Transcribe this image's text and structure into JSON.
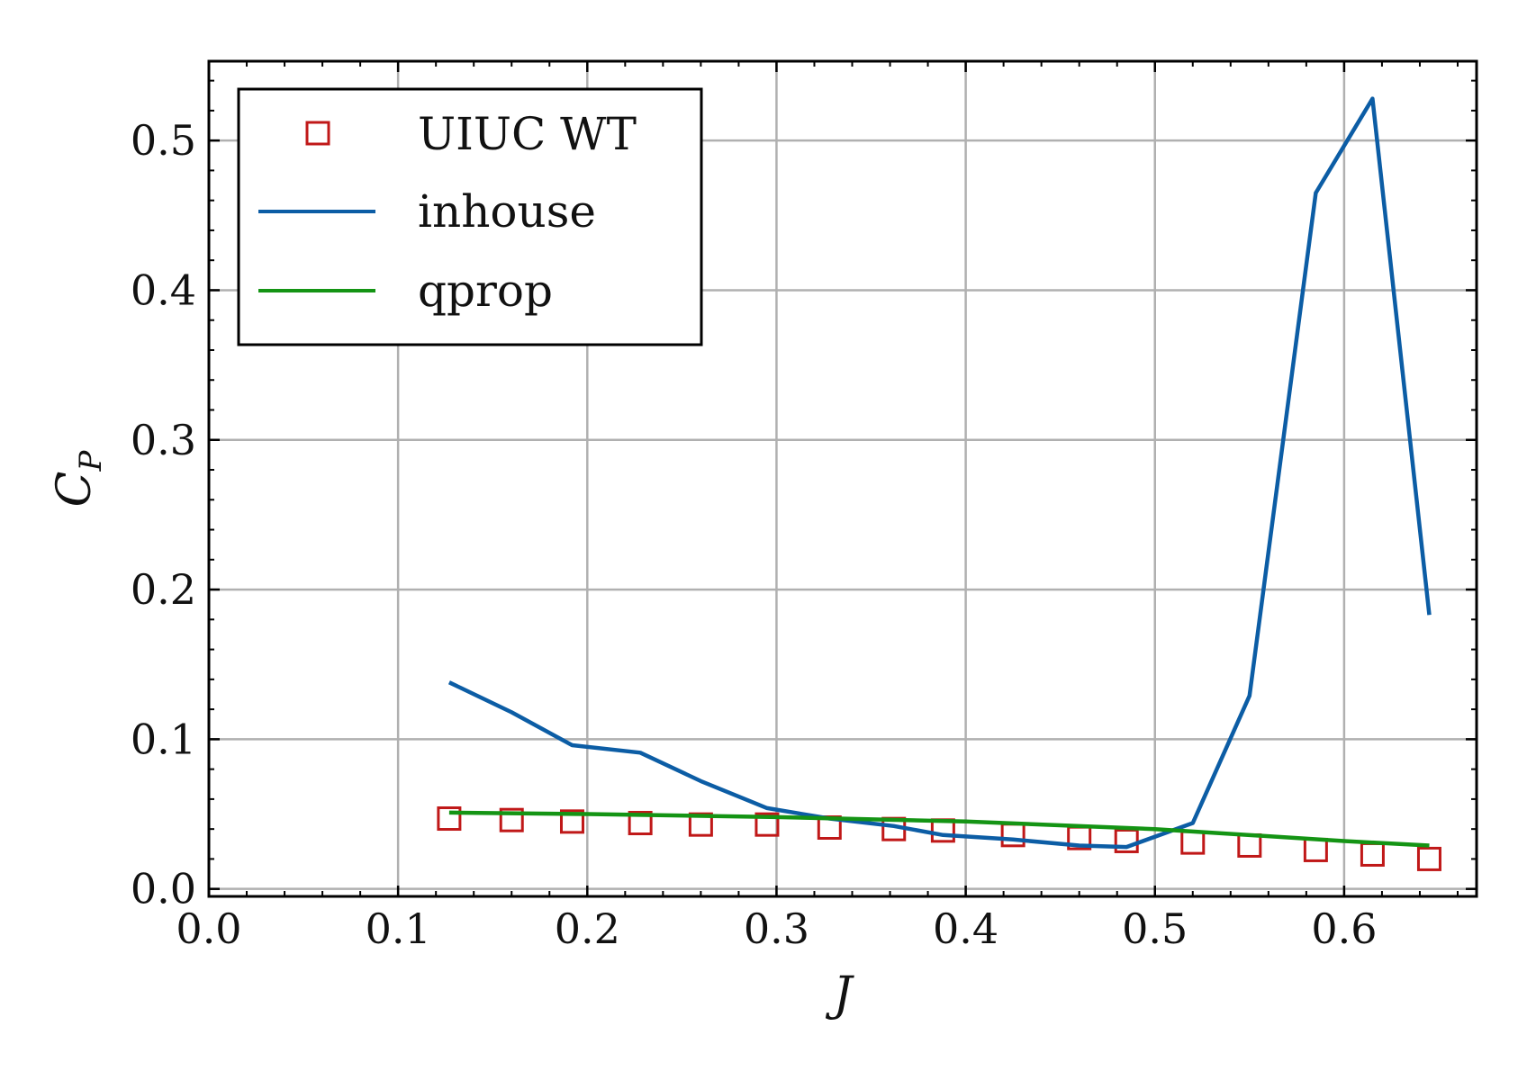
{
  "chart_data": {
    "type": "line",
    "xlabel": "J",
    "ylabel": "C_P",
    "xlim": [
      0.0,
      0.67
    ],
    "ylim": [
      -0.005,
      0.553
    ],
    "xticks": [
      "0.0",
      "0.1",
      "0.2",
      "0.3",
      "0.4",
      "0.5",
      "0.6"
    ],
    "yticks": [
      "0.0",
      "0.1",
      "0.2",
      "0.3",
      "0.4",
      "0.5"
    ],
    "grid": true,
    "legend_position": "top-left",
    "series": [
      {
        "name": "UIUC WT",
        "style": "markers",
        "marker": "square-open",
        "color": "#c01818",
        "x": [
          0.127,
          0.16,
          0.192,
          0.228,
          0.26,
          0.295,
          0.328,
          0.362,
          0.388,
          0.425,
          0.46,
          0.485,
          0.52,
          0.55,
          0.585,
          0.615,
          0.645
        ],
        "y": [
          0.047,
          0.046,
          0.045,
          0.044,
          0.043,
          0.043,
          0.041,
          0.04,
          0.039,
          0.036,
          0.034,
          0.032,
          0.031,
          0.029,
          0.026,
          0.023,
          0.02
        ]
      },
      {
        "name": "inhouse",
        "style": "line",
        "color": "#0c5da5",
        "x": [
          0.127,
          0.16,
          0.192,
          0.228,
          0.26,
          0.295,
          0.328,
          0.362,
          0.388,
          0.425,
          0.46,
          0.485,
          0.52,
          0.55,
          0.585,
          0.615,
          0.645
        ],
        "y": [
          0.138,
          0.118,
          0.096,
          0.091,
          0.072,
          0.054,
          0.047,
          0.042,
          0.036,
          0.033,
          0.029,
          0.028,
          0.044,
          0.129,
          0.465,
          0.528,
          0.183
        ]
      },
      {
        "name": "qprop",
        "style": "line",
        "color": "#149414",
        "x": [
          0.127,
          0.2,
          0.3,
          0.4,
          0.5,
          0.6,
          0.645
        ],
        "y": [
          0.051,
          0.05,
          0.048,
          0.045,
          0.04,
          0.032,
          0.029
        ]
      }
    ]
  }
}
